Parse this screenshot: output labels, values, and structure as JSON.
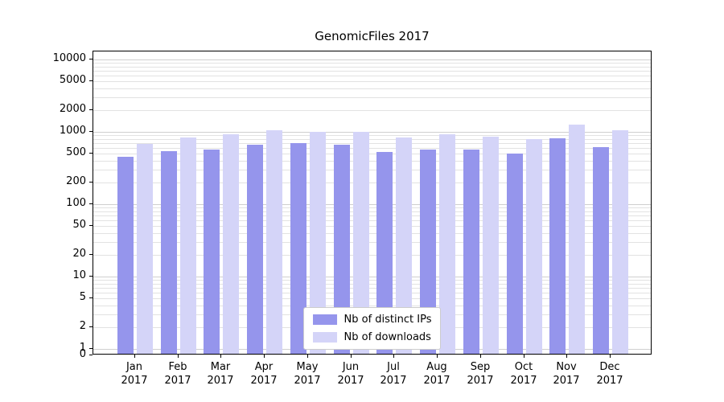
{
  "chart_data": {
    "type": "bar",
    "title": "GenomicFiles 2017",
    "categories": [
      "Jan 2017",
      "Feb 2017",
      "Mar 2017",
      "Apr 2017",
      "May 2017",
      "Jun 2017",
      "Jul 2017",
      "Aug 2017",
      "Sep 2017",
      "Oct 2017",
      "Nov 2017",
      "Dec 2017"
    ],
    "series": [
      {
        "name": "Nb of distinct IPs",
        "color": "#9595ec",
        "values": [
          430,
          520,
          545,
          630,
          660,
          625,
          505,
          535,
          540,
          480,
          770,
          580
        ]
      },
      {
        "name": "Nb of downloads",
        "color": "#d4d4f8",
        "values": [
          650,
          800,
          890,
          1000,
          950,
          950,
          790,
          870,
          820,
          760,
          1200,
          1000
        ]
      }
    ],
    "yscale": "log",
    "yticks": [
      0,
      1,
      2,
      5,
      10,
      20,
      50,
      100,
      200,
      500,
      1000,
      2000,
      5000,
      10000
    ],
    "ylim": [
      0,
      12000
    ],
    "grid": true,
    "legend_position": "lower center",
    "colors": {
      "background": "#ffffff",
      "gridline_major": "#cfcfcf",
      "gridline_minor": "#e2e2e2",
      "axis": "#000000"
    }
  }
}
